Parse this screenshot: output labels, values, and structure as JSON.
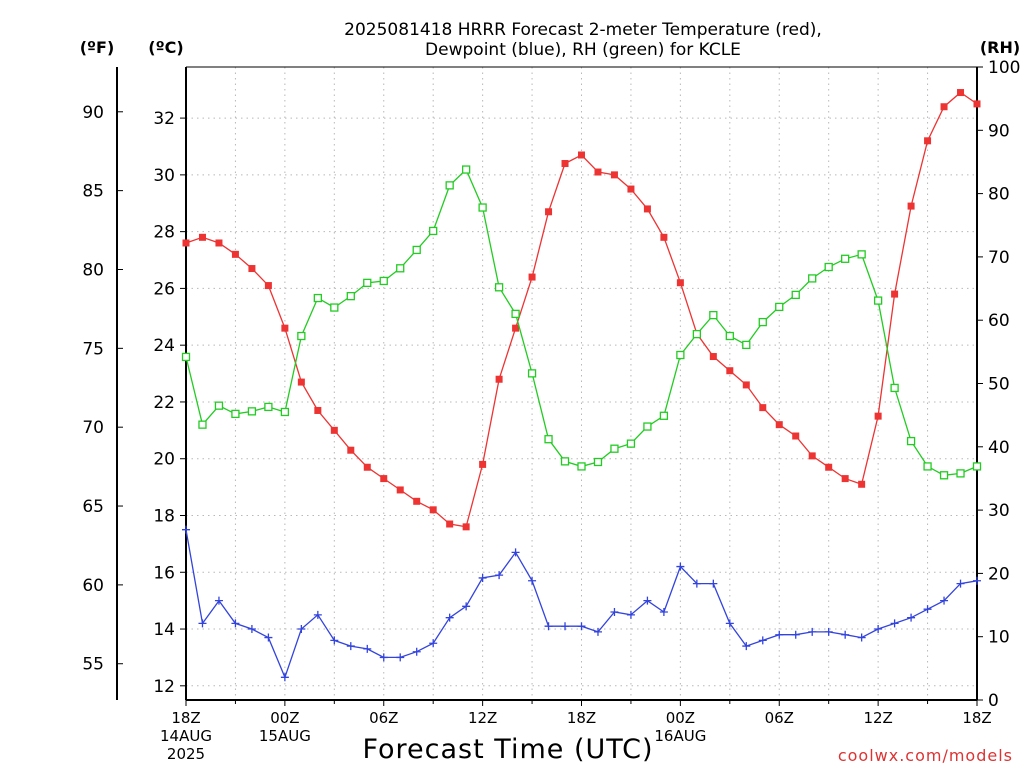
{
  "chart_data": {
    "type": "line",
    "title": [
      "2025081418 HRRR Forecast 2-meter Temperature (red),",
      "Dewpoint (blue), RH (green) for KCLE"
    ],
    "xlabel": "Forecast Time (UTC)",
    "unit_labels": {
      "fahrenheit": "(ºF)",
      "celsius": "(ºC)",
      "rh": "(RH)"
    },
    "credit": "coolwx.com/models",
    "x_ticks": [
      {
        "hour": 0,
        "lines": [
          "18Z",
          "14AUG",
          "2025"
        ]
      },
      {
        "hour": 6,
        "lines": [
          "00Z",
          "15AUG"
        ]
      },
      {
        "hour": 12,
        "lines": [
          "06Z"
        ]
      },
      {
        "hour": 18,
        "lines": [
          "12Z"
        ]
      },
      {
        "hour": 24,
        "lines": [
          "18Z"
        ]
      },
      {
        "hour": 30,
        "lines": [
          "00Z",
          "16AUG"
        ]
      },
      {
        "hour": 36,
        "lines": [
          "06Z"
        ]
      },
      {
        "hour": 42,
        "lines": [
          "12Z"
        ]
      },
      {
        "hour": 48,
        "lines": [
          "18Z"
        ]
      }
    ],
    "x_range_hours": [
      0,
      48
    ],
    "celsius_axis": {
      "range": [
        11.5,
        33.8
      ],
      "ticks": [
        12,
        14,
        16,
        18,
        20,
        22,
        24,
        26,
        28,
        30,
        32
      ]
    },
    "fahrenheit_axis": {
      "ticks": [
        55,
        60,
        65,
        70,
        75,
        80,
        85,
        90
      ]
    },
    "rh_axis": {
      "range": [
        0,
        100
      ],
      "ticks": [
        0,
        10,
        20,
        30,
        40,
        50,
        60,
        70,
        80,
        90,
        100
      ]
    },
    "grid": true,
    "series": [
      {
        "name": "Temperature",
        "axis": "celsius",
        "color": "#ee3333",
        "marker": "filled-square",
        "values": [
          27.6,
          27.8,
          27.6,
          27.2,
          26.7,
          26.1,
          24.6,
          22.7,
          21.7,
          21.0,
          20.3,
          19.7,
          19.3,
          18.9,
          18.5,
          18.2,
          17.7,
          17.6,
          19.8,
          22.8,
          24.6,
          26.4,
          28.7,
          30.4,
          30.7,
          30.1,
          30.0,
          29.5,
          28.8,
          27.8,
          26.2,
          24.4,
          23.6,
          23.1,
          22.6,
          21.8,
          21.2,
          20.8,
          20.1,
          19.7,
          19.3,
          19.1,
          21.5,
          25.8,
          28.9,
          31.2,
          32.4,
          32.9,
          32.5
        ]
      },
      {
        "name": "Dewpoint",
        "axis": "celsius",
        "color": "#3344dd",
        "marker": "plus",
        "values": [
          17.5,
          14.2,
          15.0,
          14.2,
          14.0,
          13.7,
          12.3,
          14.0,
          14.5,
          13.6,
          13.4,
          13.3,
          13.0,
          13.0,
          13.2,
          13.5,
          14.4,
          14.8,
          15.8,
          15.9,
          16.7,
          15.7,
          14.1,
          14.1,
          14.1,
          13.9,
          14.6,
          14.5,
          15.0,
          14.6,
          16.2,
          15.6,
          15.6,
          14.2,
          13.4,
          13.6,
          13.8,
          13.8,
          13.9,
          13.9,
          13.8,
          13.7,
          14.0,
          14.2,
          14.4,
          14.7,
          15.0,
          15.6,
          15.7
        ]
      },
      {
        "name": "RH",
        "axis": "rh",
        "color": "#22cc22",
        "marker": "open-square",
        "values": [
          54.2,
          43.5,
          46.5,
          45.2,
          45.6,
          46.3,
          45.5,
          57.5,
          63.5,
          62.0,
          63.8,
          65.9,
          66.2,
          68.2,
          71.1,
          74.1,
          81.3,
          83.8,
          77.8,
          65.2,
          61.0,
          51.6,
          41.2,
          37.7,
          36.9,
          37.6,
          39.7,
          40.5,
          43.2,
          44.9,
          54.5,
          57.8,
          60.8,
          57.5,
          56.1,
          59.7,
          62.1,
          64.0,
          66.6,
          68.4,
          69.7,
          70.4,
          63.1,
          49.3,
          40.9,
          36.9,
          35.5,
          35.8,
          36.9
        ]
      }
    ]
  }
}
